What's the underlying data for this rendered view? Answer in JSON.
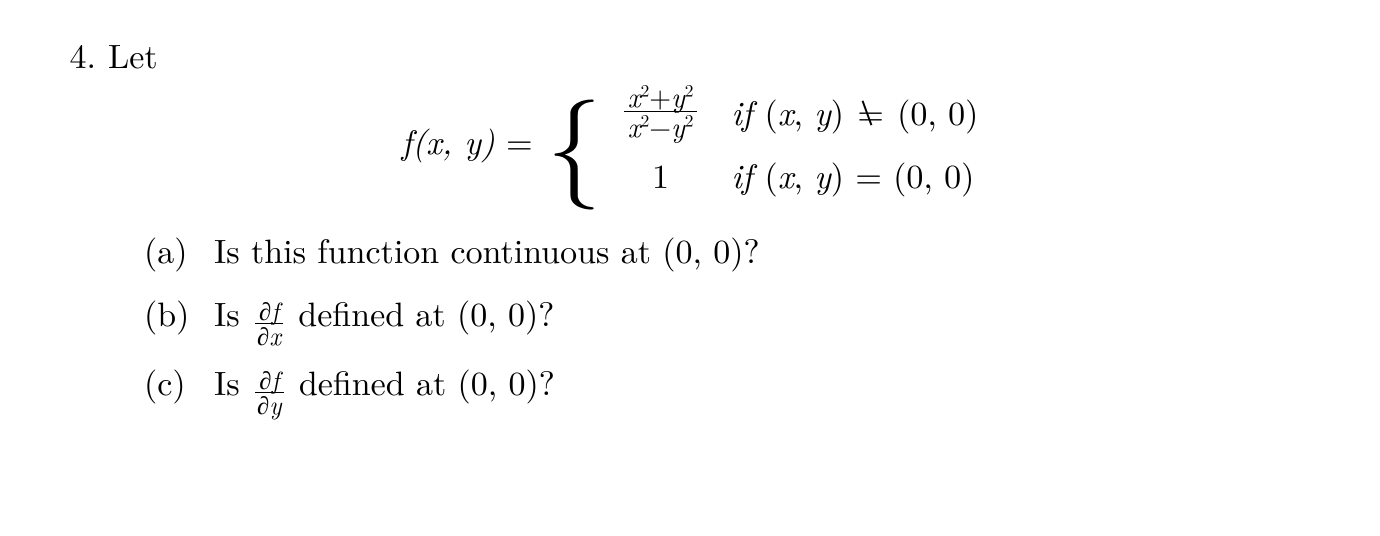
{
  "font": {
    "family": "Computer Modern / serif",
    "base_size_pt": 24
  },
  "colors": {
    "text": "#000000",
    "background": "#ffffff",
    "rule": "#000000"
  },
  "problem": {
    "number": "4.",
    "lead": "Let",
    "function": {
      "lhs_f": "f",
      "lhs_args": "(x, y)",
      "equals": " = ",
      "case1_expr_num": "x",
      "case1_expr_sq1": "2",
      "case1_expr_plus": "+",
      "case1_expr_y": "y",
      "case1_expr_sq2": "2",
      "case1_expr_den_x": "x",
      "case1_expr_den_sq1": "2",
      "case1_expr_minus": "−",
      "case1_expr_den_y": "y",
      "case1_expr_den_sq2": "2",
      "case1_cond_if": "if ",
      "case1_cond_args": "(x, y)",
      "case1_cond_rel": " ≠ ",
      "case1_cond_rel_eq": "=",
      "case1_cond_rhs": "(0, 0)",
      "case2_expr": "1",
      "case2_cond_if": "if ",
      "case2_cond_args": "(x, y)",
      "case2_cond_rel": " = ",
      "case2_cond_rhs": "(0, 0)"
    },
    "parts": {
      "a": {
        "label": "(a)",
        "text_pre": "Is this function continuous at ",
        "point": "(0, 0)",
        "q": "?"
      },
      "b": {
        "label": "(b)",
        "text_pre": "Is ",
        "partial": "∂",
        "f": "f",
        "dx": "x",
        "text_mid": " defined at ",
        "point": "(0, 0)",
        "q": "?"
      },
      "c": {
        "label": "(c)",
        "text_pre": "Is ",
        "partial": "∂",
        "f": "f",
        "dy": "y",
        "text_mid": " defined at ",
        "point": "(0, 0)",
        "q": "?"
      }
    }
  }
}
